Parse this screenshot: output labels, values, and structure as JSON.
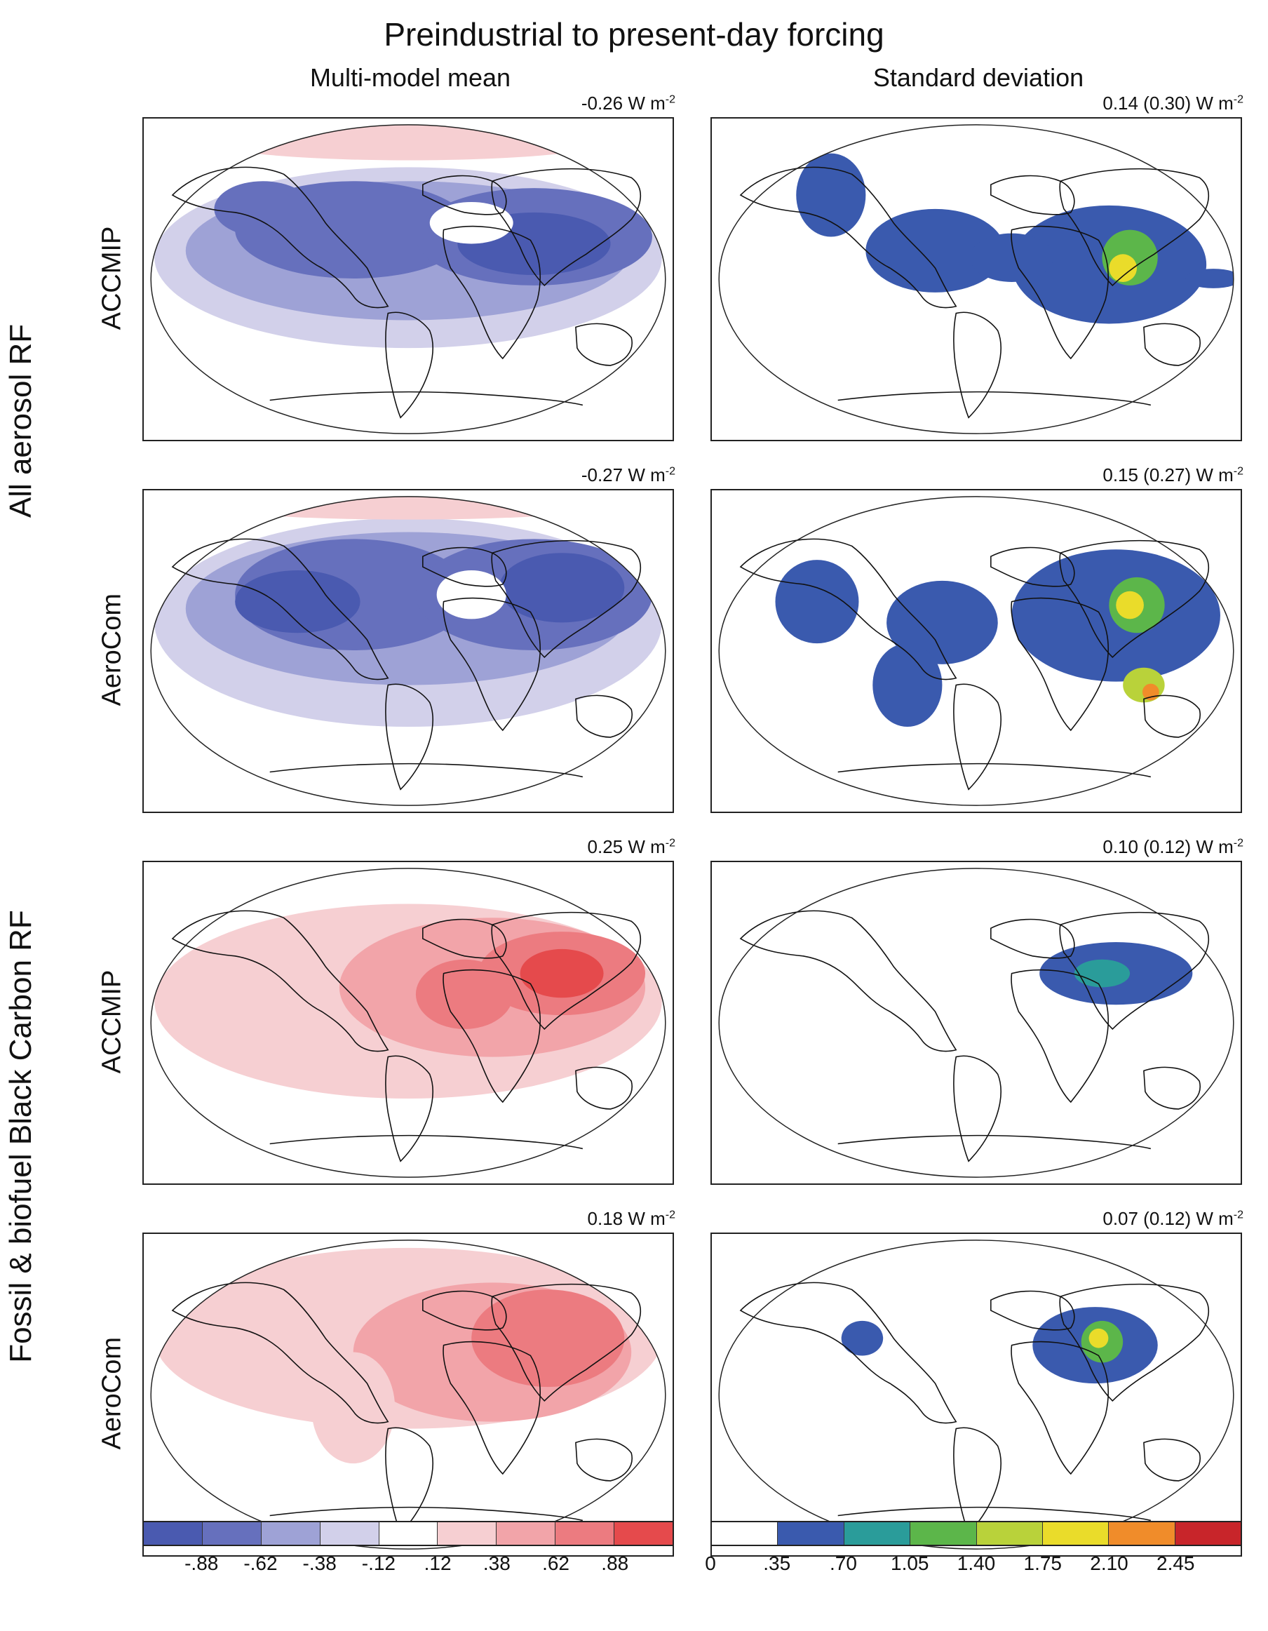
{
  "title": "Preindustrial to present-day forcing",
  "columns": {
    "left": "Multi-model mean",
    "right": "Standard deviation"
  },
  "group_labels": {
    "top": "All aerosol RF",
    "bottom": "Fossil & biofuel Black Carbon RF"
  },
  "row_labels": [
    "ACCMIP",
    "AeroCom",
    "ACCMIP",
    "AeroCom"
  ],
  "unit": {
    "base": "W m",
    "exp": "-2"
  },
  "panels": [
    {
      "row": 0,
      "col": "mean",
      "label": "-0.26",
      "field": "all-aerosol-accmip-mean"
    },
    {
      "row": 0,
      "col": "sd",
      "label": "0.14 (0.30)",
      "field": "all-aerosol-accmip-sd"
    },
    {
      "row": 1,
      "col": "mean",
      "label": "-0.27",
      "field": "all-aerosol-aerocom-mean"
    },
    {
      "row": 1,
      "col": "sd",
      "label": "0.15 (0.27)",
      "field": "all-aerosol-aerocom-sd"
    },
    {
      "row": 2,
      "col": "mean",
      "label": "0.25",
      "field": "bc-accmip-mean"
    },
    {
      "row": 2,
      "col": "sd",
      "label": "0.10 (0.12)",
      "field": "bc-accmip-sd"
    },
    {
      "row": 3,
      "col": "mean",
      "label": "0.18",
      "field": "bc-aerocom-mean"
    },
    {
      "row": 3,
      "col": "sd",
      "label": "0.07 (0.12)",
      "field": "bc-aerocom-sd"
    }
  ],
  "colorbar_mean": {
    "colors": [
      "#4a5ab0",
      "#6670bd",
      "#9ea2d6",
      "#d2d0ea",
      "#ffffff",
      "#f6cfd2",
      "#f2a4a9",
      "#ec7b80",
      "#e54a4c"
    ],
    "ticks": [
      "-.88",
      "-.62",
      "-.38",
      "-.12",
      ".12",
      ".38",
      ".62",
      ".88"
    ]
  },
  "colorbar_sd": {
    "colors": [
      "#ffffff",
      "#3a5aae",
      "#2a9c9a",
      "#5cb64a",
      "#b9d23a",
      "#eadc2a",
      "#f08c2a",
      "#c8252a"
    ],
    "ticks": [
      "0",
      ".35",
      ".70",
      "1.05",
      "1.40",
      "1.75",
      "2.10",
      "2.45"
    ]
  }
}
